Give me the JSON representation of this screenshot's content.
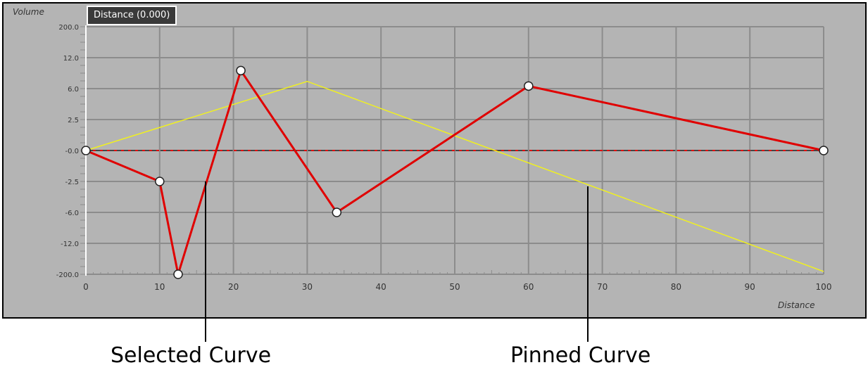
{
  "readout": "Distance (0.000)",
  "annotations": {
    "selected": "Selected Curve",
    "pinned": "Pinned Curve"
  },
  "chart_data": {
    "type": "line",
    "xlabel": "Distance",
    "ylabel": "Volume",
    "xlim": [
      0,
      100
    ],
    "x_ticks": [
      "0",
      "10",
      "20",
      "30",
      "40",
      "50",
      "60",
      "70",
      "80",
      "90",
      "100"
    ],
    "y_ticks": [
      200.0,
      12.0,
      6.0,
      2.5,
      -0.0,
      -2.5,
      -6.0,
      -12.0,
      -200.0
    ],
    "y_tick_labels": [
      "200.0",
      "12.0",
      "6.0",
      "2.5",
      "-0.0",
      "-2.5",
      "-6.0",
      "-12.0",
      "-200.0"
    ],
    "y_scale": "non-linear (tick-spaced)",
    "grid": true,
    "series": [
      {
        "role": "selected",
        "color": "#e00000",
        "x": [
          0,
          10,
          12.5,
          21,
          34,
          60,
          100
        ],
        "y": [
          0,
          -2.5,
          -200,
          9.5,
          -6.0,
          6.5,
          0
        ],
        "markers": true
      },
      {
        "role": "pinned",
        "color": "#f0f020",
        "x": [
          0,
          30,
          100
        ],
        "y": [
          0,
          7.4,
          -183
        ],
        "markers": false
      }
    ],
    "baseline": {
      "y": 0,
      "style": "dashed",
      "color": "#e00000"
    }
  }
}
